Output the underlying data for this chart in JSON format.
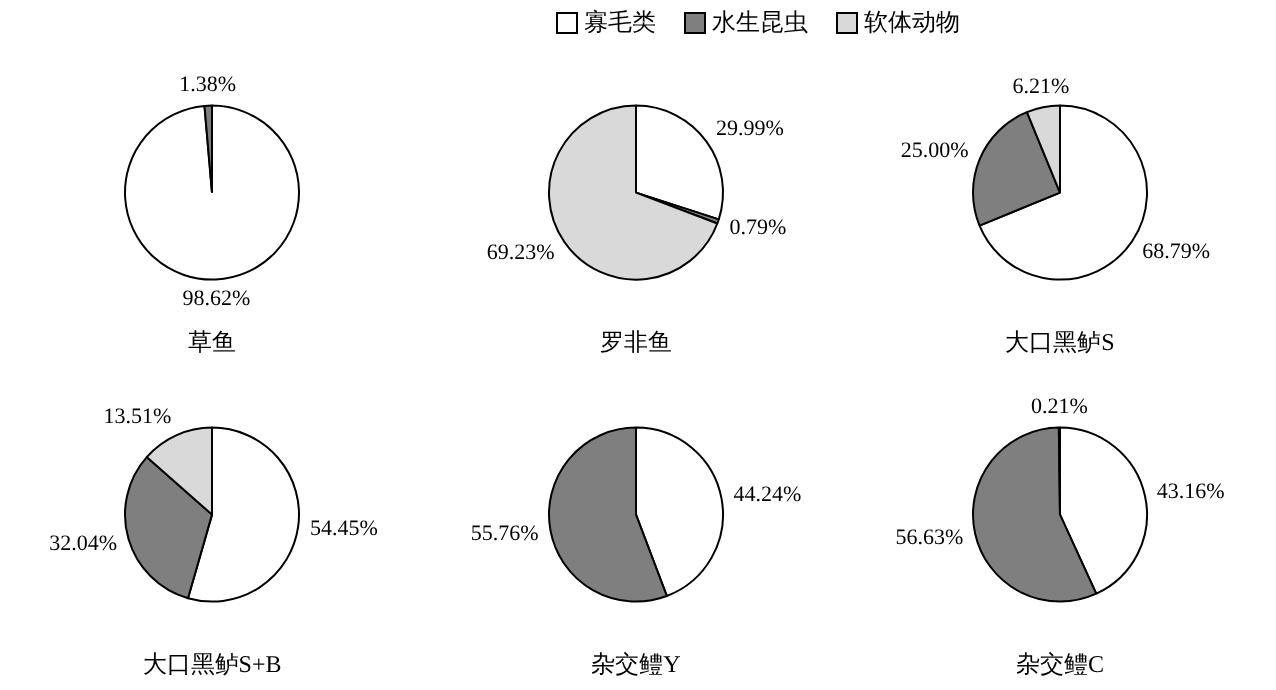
{
  "chart_data": [
    {
      "type": "pie",
      "title": "草鱼",
      "categories": [
        "寡毛类",
        "水生昆虫",
        "软体动物"
      ],
      "values": [
        98.62,
        1.38,
        null
      ],
      "value_labels": [
        "98.62%",
        "1.38%",
        null
      ],
      "colors": [
        "#ffffff",
        "#7f7f7f",
        "#d9d9d9"
      ],
      "legend": "top"
    },
    {
      "type": "pie",
      "title": "罗非鱼",
      "values": [
        29.99,
        0.79,
        69.23
      ],
      "value_labels": [
        "29.99%",
        "0.79%",
        "69.23%"
      ],
      "colors": [
        "#ffffff",
        "#7f7f7f",
        "#d9d9d9"
      ]
    },
    {
      "type": "pie",
      "title": "大口黑鲈S",
      "values": [
        68.79,
        25.0,
        6.21
      ],
      "value_labels": [
        "68.79%",
        "25.00%",
        "6.21%"
      ],
      "colors": [
        "#ffffff",
        "#7f7f7f",
        "#d9d9d9"
      ]
    },
    {
      "type": "pie",
      "title": "大口黑鲈S+B",
      "values": [
        54.45,
        32.04,
        13.51
      ],
      "value_labels": [
        "54.45%",
        "32.04%",
        "13.51%"
      ],
      "colors": [
        "#ffffff",
        "#7f7f7f",
        "#d9d9d9"
      ]
    },
    {
      "type": "pie",
      "title": "杂交鳢Y",
      "values": [
        44.24,
        55.76,
        null
      ],
      "value_labels": [
        "44.24%",
        "55.76%",
        null
      ],
      "colors": [
        "#ffffff",
        "#7f7f7f",
        "#d9d9d9"
      ]
    },
    {
      "type": "pie",
      "title": "杂交鳢C",
      "values": [
        43.16,
        56.63,
        0.21
      ],
      "value_labels": [
        "43.16%",
        "56.63%",
        "0.21%"
      ],
      "colors": [
        "#ffffff",
        "#7f7f7f",
        "#d9d9d9"
      ]
    }
  ]
}
